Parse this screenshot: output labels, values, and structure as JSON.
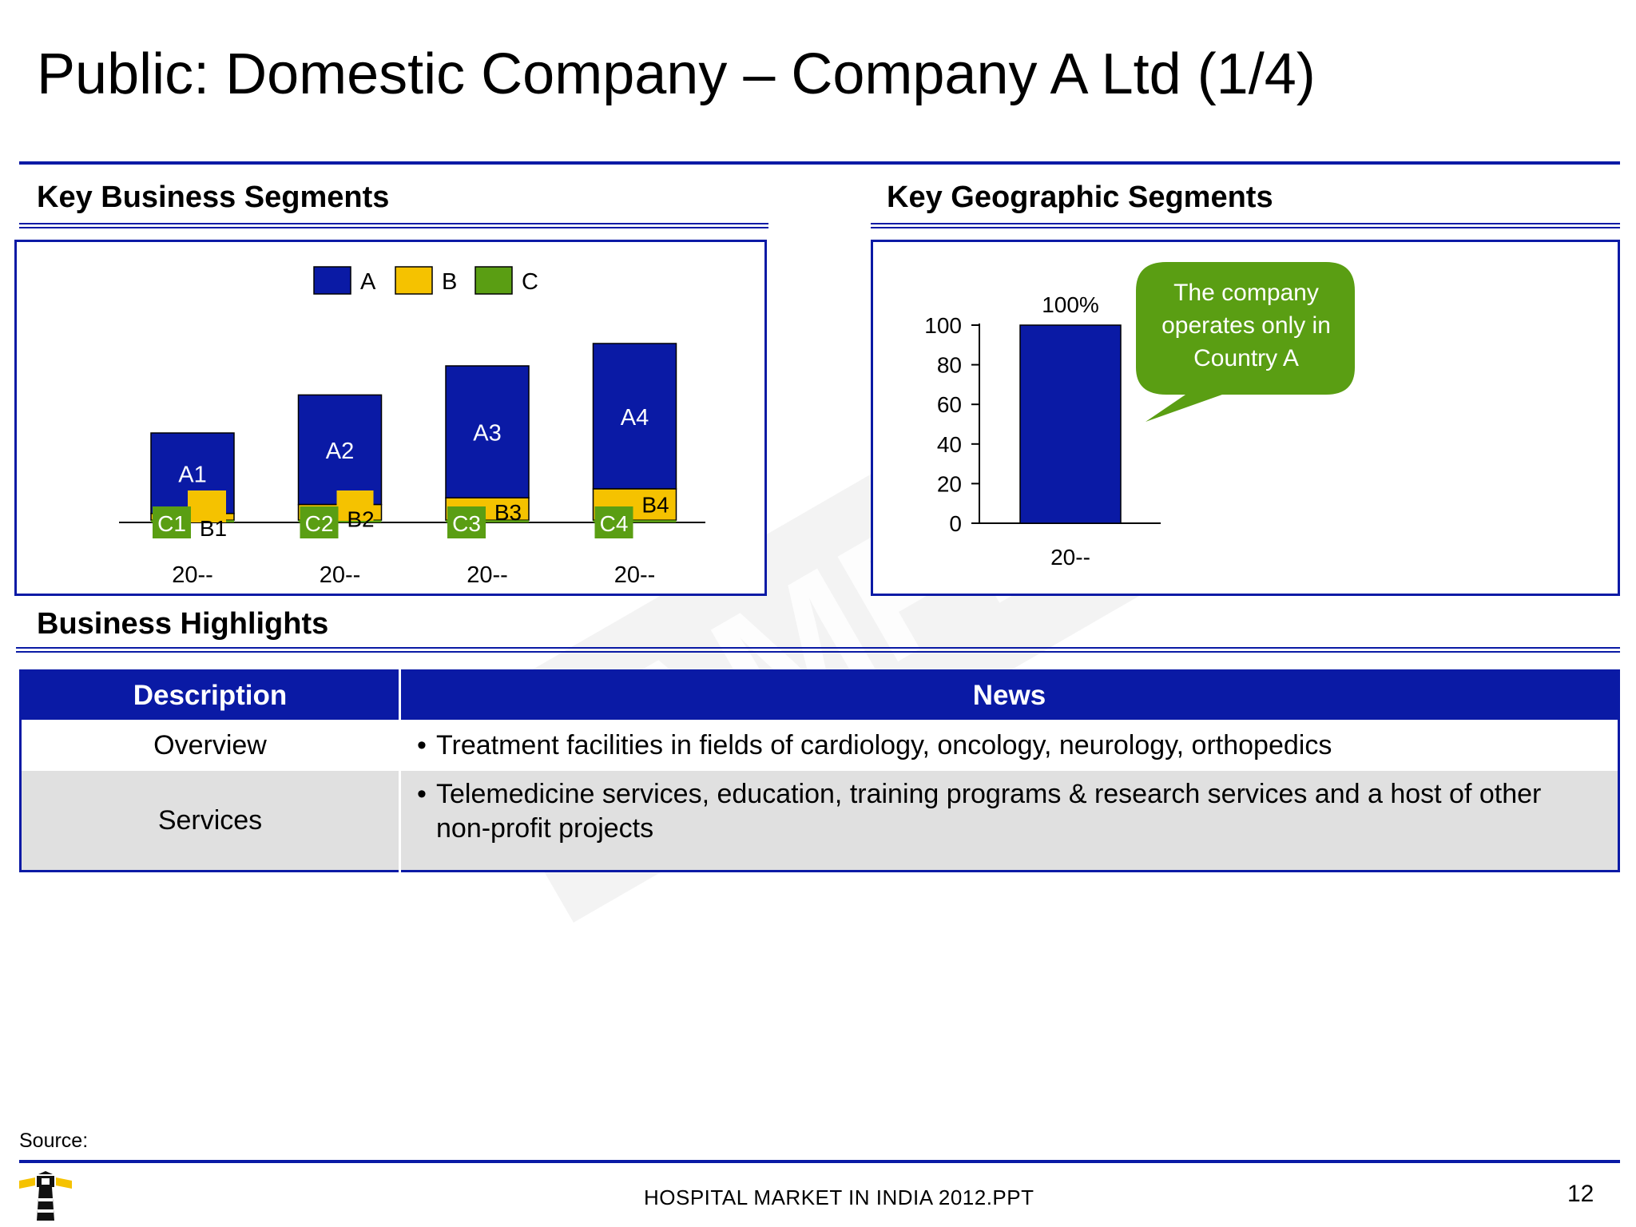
{
  "slide": {
    "title": "Public: Domestic Company – Company A Ltd (1/4)",
    "source_label": "Source:",
    "footer_text": "HOSPITAL MARKET IN INDIA 2012.PPT",
    "page_number": "12",
    "watermark_text": "SAMPLE"
  },
  "sections": {
    "business_segments": "Key Business Segments",
    "geographic_segments": "Key Geographic Segments",
    "business_highlights": "Business Highlights"
  },
  "callout": {
    "text": "The company operates only in Country A",
    "color": "#5a9e13"
  },
  "colors": {
    "series_a": "#0a1aa5",
    "series_b": "#f5c200",
    "series_c": "#5a9e13",
    "rule": "#0a1aa5",
    "table_header": "#0a1aa5",
    "table_alt_row": "#e0e0e0"
  },
  "chart_data": [
    {
      "type": "bar",
      "stacked": true,
      "categories": [
        "20--",
        "20--",
        "20--",
        "20--"
      ],
      "series": [
        {
          "name": "C",
          "values": [
            1,
            1,
            1,
            1
          ],
          "labels": [
            "C1",
            "C2",
            "C3",
            "C4"
          ]
        },
        {
          "name": "B",
          "values": [
            3,
            7,
            10,
            14
          ],
          "labels": [
            "B1",
            "B2",
            "B3",
            "B4"
          ]
        },
        {
          "name": "A",
          "values": [
            36,
            49,
            59,
            65
          ],
          "labels": [
            "A1",
            "A2",
            "A3",
            "A4"
          ]
        }
      ],
      "legend": [
        "A",
        "B",
        "C"
      ],
      "legend_position": "top",
      "ylim": [
        0,
        90
      ],
      "axes_visible": false
    },
    {
      "type": "bar",
      "categories": [
        "20--"
      ],
      "series": [
        {
          "values": [
            100
          ]
        }
      ],
      "data_labels": [
        "100%"
      ],
      "yticks": [
        "0",
        "20",
        "40",
        "60",
        "80",
        "100"
      ],
      "ylim": [
        0,
        100
      ]
    }
  ],
  "table": {
    "headers": [
      "Description",
      "News"
    ],
    "rows": [
      {
        "description": "Overview",
        "news": "Treatment facilities in fields of cardiology, oncology, neurology, orthopedics"
      },
      {
        "description": "Services",
        "news": "Telemedicine services, education, training programs & research services and a host of other non-profit projects"
      }
    ]
  }
}
